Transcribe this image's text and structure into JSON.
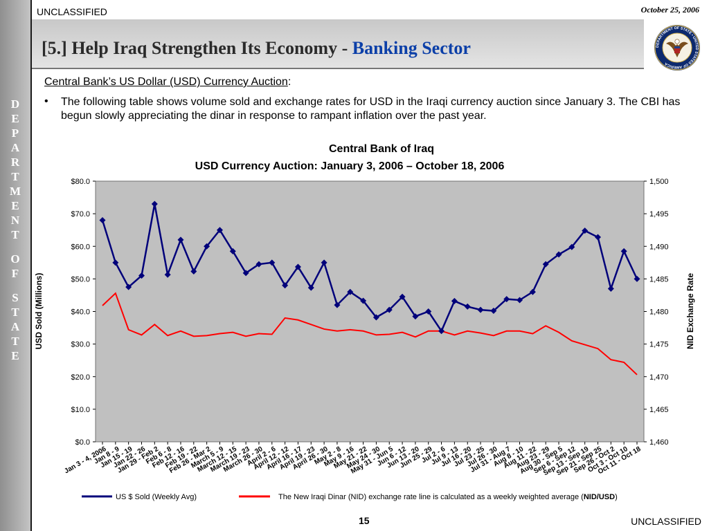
{
  "header": {
    "classification": "UNCLASSIFIED",
    "date": "October 25, 2006",
    "title_main": "[5.] Help Iraq Strengthen Its Economy -",
    "title_highlight": "Banking Sector",
    "seal_text": "DEPARTMENT OF STATE • UNITED STATES OF AMERICA"
  },
  "sidebar": {
    "letters": [
      "D",
      "E",
      "P",
      "A",
      "R",
      "T",
      "M",
      "E",
      "N",
      "T",
      " ",
      "O",
      "F",
      " ",
      "S",
      "T",
      "A",
      "T",
      "E"
    ]
  },
  "body": {
    "subheading": "Central Bank’s US Dollar (USD) Currency Auction",
    "subheading_suffix": ":",
    "bullet_symbol": "•",
    "bullet_text": "The following table shows volume sold and exchange rates for USD in the Iraqi currency auction since January 3.  The CBI has begun slowly appreciating the dinar in response to rampant inflation over the past year."
  },
  "footer": {
    "page_number": "15",
    "classification": "UNCLASSIFIED"
  },
  "colors": {
    "usd_series": "#00007a",
    "nid_series": "#ff0000",
    "plot_bg": "#c0c0c0",
    "title_accent": "#0b3fa8"
  },
  "chart_data": {
    "type": "line",
    "title": "Central Bank of Iraq",
    "subtitle": "USD Currency Auction: January 3, 2006 – October 18, 2006",
    "ylabel": "USD Sold (Millions)",
    "y2label": "NID Exchange Rate",
    "ylim": [
      0,
      80
    ],
    "y2lim": [
      1460,
      1500
    ],
    "yticks": [
      "$0.0",
      "$10.0",
      "$20.0",
      "$30.0",
      "$40.0",
      "$50.0",
      "$60.0",
      "$70.0",
      "$80.0"
    ],
    "y2ticks": [
      "1,460",
      "1,465",
      "1,470",
      "1,475",
      "1,480",
      "1,485",
      "1,490",
      "1,495",
      "1,500"
    ],
    "grid": false,
    "legend_position": "bottom",
    "categories": [
      "Jan 3 - 4, 2006",
      "Jan 8 - 9",
      "Jan 15 - 19",
      "Jan 22 - 26",
      "Jan 29 - Feb 2",
      "Feb 6 - 8",
      "Feb 12 - 16",
      "Feb 19 - 22",
      "Feb 26 - Mar 2",
      "March 5 - 9",
      "March 12 - 15",
      "March 19 - 23",
      "March 26 - 30",
      "April 2 - 6",
      "April 12 - 12",
      "April 16 - 17",
      "April 19 - 23",
      "April 26 - 30",
      "May 2 - 8",
      "May 9 - 16",
      "May 21 - 22",
      "May 24 - 30",
      "May 31 - Jun 5",
      "Jun 6 - 12",
      "Jun 13 - 20",
      "Jun 25 - 29",
      "Jul 2 - 6",
      "Jul 9 - 13",
      "Jul 16 - 20",
      "Jul 23 - 25",
      "Jul 26 - 30",
      "Jul 31 - Aug 7",
      "Aug 8 - 10",
      "Aug 11 - 22",
      "Aug 23 - 29",
      "Aug 30 - Sep 5",
      "Sep 6 - Sep 12",
      "Sep 13 - Sep 19",
      "Sep 21 - Sep 25",
      "Sep 26 - Oct 2",
      "Oct 3 - Oct 10",
      "Oct 11 - Oct 18"
    ],
    "series": [
      {
        "name": "US $ Sold (Weekly Avg)",
        "axis": "left",
        "values": [
          68.0,
          55.0,
          47.5,
          51.0,
          73.0,
          51.3,
          62.0,
          52.3,
          60.0,
          65.0,
          58.5,
          51.8,
          54.5,
          55.0,
          48.0,
          53.7,
          47.3,
          55.0,
          42.0,
          46.0,
          43.3,
          38.2,
          40.5,
          44.5,
          38.5,
          40.0,
          34.0,
          43.2,
          41.5,
          40.5,
          40.2,
          43.8,
          43.5,
          46.0,
          54.5,
          57.5,
          59.8,
          64.8,
          62.8,
          47.0,
          58.5,
          50.0
        ]
      },
      {
        "name": "The New Iraqi Dinar (NID) exchange rate line is calculated as a weekly weighted average (NID/USD)",
        "axis": "right",
        "values": [
          1480.9,
          1482.8,
          1477.2,
          1476.4,
          1478.0,
          1476.3,
          1477.0,
          1476.2,
          1476.3,
          1476.6,
          1476.8,
          1476.2,
          1476.6,
          1476.5,
          1479.0,
          1478.7,
          1478.0,
          1477.3,
          1477.0,
          1477.2,
          1477.0,
          1476.4,
          1476.5,
          1476.8,
          1476.1,
          1477.0,
          1477.0,
          1476.4,
          1477.0,
          1476.7,
          1476.3,
          1477.0,
          1477.0,
          1476.6,
          1477.8,
          1476.8,
          1475.5,
          1474.9,
          1474.3,
          1472.6,
          1472.2,
          1470.3
        ]
      }
    ],
    "legend": [
      {
        "label": "US $ Sold (Weekly Avg)"
      },
      {
        "label_prefix": "The New Iraqi Dinar (NID) exchange rate line is calculated as a weekly weighted average (",
        "label_bold": "NID/USD",
        "label_suffix": ")"
      }
    ]
  }
}
